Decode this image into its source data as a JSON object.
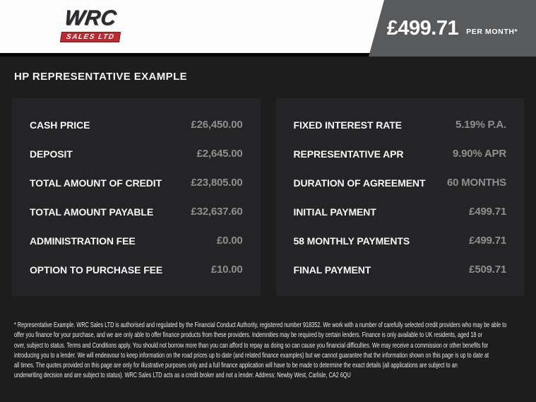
{
  "brand": {
    "name_top": "WRC",
    "name_bottom": "SALES LTD"
  },
  "price_banner": {
    "amount": "£499.71",
    "period": "PER MONTH*"
  },
  "heading": "HP REPRESENTATIVE EXAMPLE",
  "panels": {
    "left": {
      "rows": [
        {
          "label": "CASH PRICE",
          "value": "£26,450.00"
        },
        {
          "label": "DEPOSIT",
          "value": "£2,645.00"
        },
        {
          "label": "TOTAL AMOUNT OF CREDIT",
          "value": "£23,805.00"
        },
        {
          "label": "TOTAL AMOUNT PAYABLE",
          "value": "£32,637.60"
        },
        {
          "label": "ADMINISTRATION FEE",
          "value": "£0.00"
        },
        {
          "label": "OPTION TO PURCHASE FEE",
          "value": "£10.00"
        }
      ]
    },
    "right": {
      "rows": [
        {
          "label": "FIXED INTEREST RATE",
          "value": "5.19% P.A."
        },
        {
          "label": "REPRESENTATIVE APR",
          "value": "9.90% APR"
        },
        {
          "label": "DURATION OF AGREEMENT",
          "value": "60 MONTHS"
        },
        {
          "label": "INITIAL PAYMENT",
          "value": "£499.71"
        },
        {
          "label": "58 MONTHLY PAYMENTS",
          "value": "£499.71"
        },
        {
          "label": "FINAL PAYMENT",
          "value": "£509.71"
        }
      ]
    }
  },
  "disclaimer": {
    "text": "* Representative Example. WRC Sales LTD is authorised and regulated by the Financial Conduct Authority, registered number 918352. We work with a number of carefully selected credit providers who may be able to\noffer you finance for your purchase, and we are only able to offer finance products from these providers. Indemnities may be required by certain lenders. Finance is only available to UK residents, aged 18 or\nover, subject to status. Terms and Conditions apply. You should not borrow more than you can afford to repay as doing so can cause you financial difficulties. We may receive a commission or other benefits for\nintroducing you to a lender. We will endeavour to keep information on the road prices up to date (and related finance examples) but we cannot guarantee that the information shown on this page is up to date at\nall times. The quotes provided on this page are only for illustrative purposes only and a full finance application will have to be made to determine the exact details (all applications are subject to an\nunderwriting decision and are subject to status). WRC Sales LTD acts as a credit broker and not a lender. Address: Newby West, Carlisle, CA2 6QU"
  },
  "colors": {
    "accent_red": "#bf2a30",
    "banner_gray": "#595a5c",
    "page_bg": "#1d1d1e",
    "panel_bg": "#242426",
    "value_gray": "#8f8f8f"
  }
}
